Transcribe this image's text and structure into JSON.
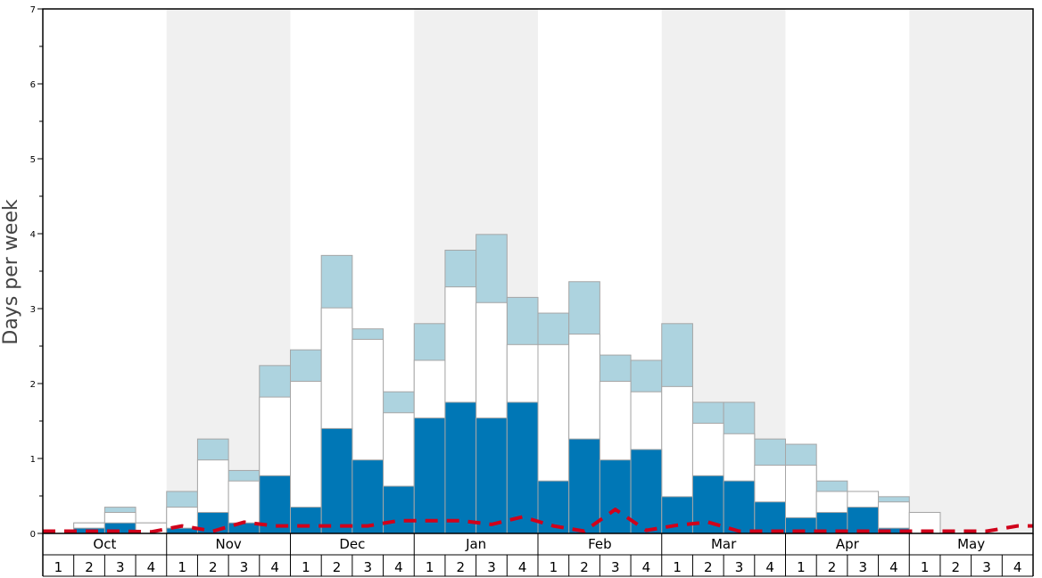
{
  "chart_data": {
    "type": "bar",
    "ylabel": "Days per week",
    "ylim": [
      0,
      7
    ],
    "yticks": [
      "0",
      "1",
      "2",
      "3",
      "4",
      "5",
      "6",
      "7"
    ],
    "months": [
      "Oct",
      "Nov",
      "Dec",
      "Jan",
      "Feb",
      "Mar",
      "Apr",
      "May"
    ],
    "week_labels": [
      "1",
      "2",
      "3",
      "4"
    ],
    "colors": {
      "dark": "#0077b6",
      "white": "#ffffff",
      "light": "#add3df",
      "line": "#d0021b",
      "band": "#f0f0f0"
    },
    "series": [
      {
        "key": "dark",
        "values": [
          0,
          0.07,
          0.14,
          0,
          0.07,
          0.28,
          0.14,
          0.77,
          0.35,
          1.4,
          0.98,
          0.63,
          1.54,
          1.75,
          1.54,
          1.75,
          0.7,
          1.26,
          0.98,
          1.12,
          0.49,
          0.77,
          0.7,
          0.42,
          0.21,
          0.28,
          0.35,
          0.07,
          0,
          0,
          0,
          0
        ]
      },
      {
        "key": "white",
        "values": [
          0,
          0.14,
          0.28,
          0.14,
          0.35,
          0.98,
          0.7,
          1.82,
          2.03,
          3.01,
          2.59,
          1.61,
          2.31,
          3.29,
          3.08,
          2.52,
          2.52,
          2.66,
          2.03,
          1.89,
          1.96,
          1.47,
          1.33,
          0.91,
          0.91,
          0.56,
          0.56,
          0.42,
          0.28,
          0,
          0,
          0
        ]
      },
      {
        "key": "light",
        "values": [
          0,
          0.14,
          0.35,
          0.14,
          0.56,
          1.26,
          0.84,
          2.24,
          2.45,
          3.71,
          2.73,
          1.89,
          2.8,
          3.78,
          3.99,
          3.15,
          2.94,
          3.36,
          2.38,
          2.31,
          2.8,
          1.75,
          1.75,
          1.26,
          1.19,
          0.7,
          0.56,
          0.49,
          0.28,
          0,
          0,
          0
        ]
      }
    ],
    "line": {
      "values": [
        0.03,
        0.03,
        0.03,
        0.02,
        0.1,
        0.03,
        0.15,
        0.1,
        0.1,
        0.1,
        0.1,
        0.17,
        0.17,
        0.17,
        0.12,
        0.22,
        0.1,
        0.03,
        0.32,
        0.04,
        0.11,
        0.15,
        0.03,
        0.03,
        0.03,
        0.03,
        0.03,
        0.03,
        0.03,
        0.03,
        0.03,
        0.1
      ]
    }
  }
}
